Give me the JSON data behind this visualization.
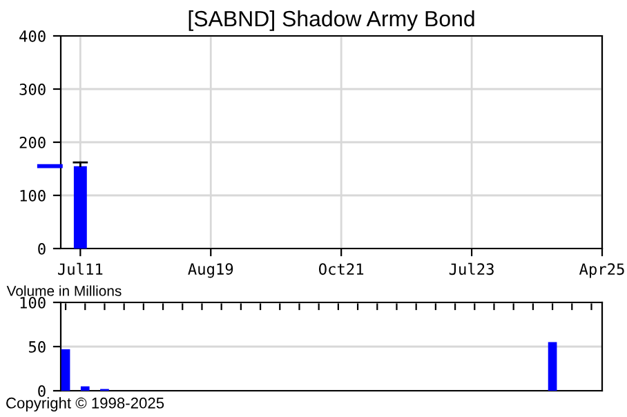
{
  "chart_data": [
    {
      "type": "bar",
      "title": "[SABND] Shadow Army Bond",
      "categories": [
        "Jul11",
        "Aug19",
        "Oct21",
        "Jul23",
        "Apr25"
      ],
      "values": [
        155,
        null,
        null,
        null,
        null
      ],
      "errors": [
        [
          155,
          162
        ],
        null,
        null,
        null,
        null
      ],
      "color": "#0000ff",
      "ylim": [
        0,
        400
      ],
      "yticks": [
        0,
        100,
        200,
        300,
        400
      ],
      "grid": true
    },
    {
      "type": "bar",
      "ylabel": "Volume in Millions",
      "categories": [
        null,
        null,
        null,
        null,
        null,
        null,
        null,
        null,
        null,
        null,
        null,
        null,
        null,
        null,
        null,
        null,
        null,
        null,
        null,
        null,
        null,
        null,
        null,
        null,
        null,
        null,
        null,
        null
      ],
      "values": [
        47,
        5,
        2,
        0,
        0,
        0,
        0,
        0,
        0,
        0,
        0,
        0,
        0,
        0,
        0,
        0,
        0,
        0,
        0,
        0,
        0,
        0,
        0,
        0,
        0,
        55,
        0,
        0
      ],
      "color": "#0000ff",
      "ylim": [
        0,
        100
      ],
      "yticks": [
        0,
        50,
        100
      ],
      "grid": "y",
      "tick_labels": "y",
      "annotations": [
        "Copyright © 1998-2025"
      ]
    }
  ]
}
